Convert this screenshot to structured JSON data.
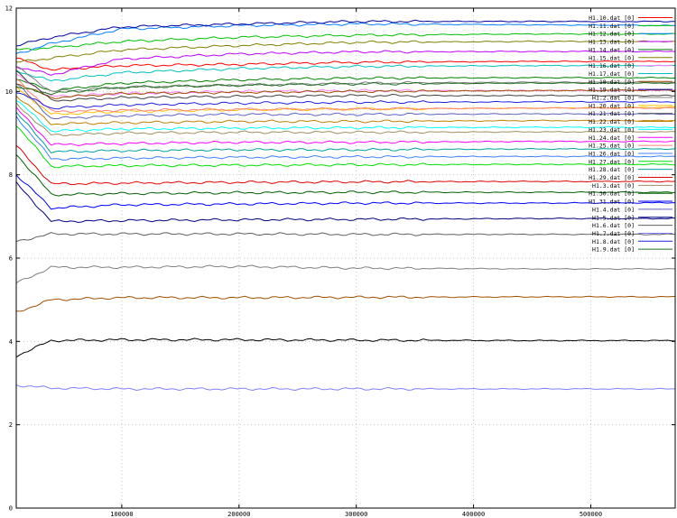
{
  "chart_data": {
    "type": "line",
    "title": "",
    "xlabel": "",
    "ylabel": "",
    "xlim": [
      10000,
      572000
    ],
    "ylim": [
      0,
      12
    ],
    "grid": true,
    "legend_position": "top-right",
    "x_ticks": [
      100000,
      200000,
      300000,
      400000,
      500000
    ],
    "y_ticks": [
      0,
      2,
      4,
      6,
      8,
      10,
      12
    ],
    "x_tick_labels": [
      "100000",
      "200000",
      "300000",
      "400000",
      "500000"
    ],
    "y_tick_labels": [
      "0",
      "2",
      "4",
      "6",
      "8",
      "10",
      "12"
    ],
    "series": [
      {
        "name": "H1.10.dat [0]",
        "color": "#ff0000",
        "start": 10.8,
        "values": [
          10.52,
          10.62,
          10.65,
          10.7,
          10.72,
          10.72
        ]
      },
      {
        "name": "H1.11.dat [0]",
        "color": "#00c000",
        "start": 11.0,
        "values": [
          11.05,
          11.2,
          11.3,
          11.35,
          11.38,
          11.38
        ]
      },
      {
        "name": "H1.12.dat [0]",
        "color": "#0080ff",
        "start": 10.9,
        "values": [
          11.15,
          11.5,
          11.58,
          11.62,
          11.6,
          11.58
        ]
      },
      {
        "name": "H1.13.dat [0]",
        "color": "#c000ff",
        "start": 10.6,
        "values": [
          10.4,
          10.78,
          10.9,
          10.95,
          10.96,
          10.96
        ]
      },
      {
        "name": "H1.14.dat [0]",
        "color": "#008000",
        "start": 10.3,
        "values": [
          10.02,
          10.2,
          10.28,
          10.32,
          10.33,
          10.33
        ]
      },
      {
        "name": "H1.15.dat [0]",
        "color": "#808000",
        "start": 10.7,
        "values": [
          10.8,
          11.0,
          11.1,
          11.18,
          11.2,
          11.2
        ]
      },
      {
        "name": "H1.16.dat [0]",
        "color": "#ff80ff",
        "start": 10.4,
        "values": [
          9.88,
          9.95,
          10.0,
          10.02,
          10.02,
          10.03
        ]
      },
      {
        "name": "H1.17.dat [0]",
        "color": "#00c0c0",
        "start": 10.5,
        "values": [
          10.25,
          10.45,
          10.55,
          10.6,
          10.62,
          10.62
        ]
      },
      {
        "name": "H1.18.dat [0]",
        "color": "#a05000",
        "start": 10.2,
        "values": [
          9.85,
          9.95,
          9.98,
          10.0,
          10.02,
          10.03
        ]
      },
      {
        "name": "H1.19.dat [0]",
        "color": "#0000a0",
        "start": 11.1,
        "values": [
          11.3,
          11.55,
          11.62,
          11.68,
          11.68,
          11.68
        ]
      },
      {
        "name": "H1.2.dat [0]",
        "color": "#808080",
        "start": 10.6,
        "values": [
          10.0,
          10.1,
          10.15,
          10.2,
          10.22,
          10.22
        ]
      },
      {
        "name": "H1.20.dat [0]",
        "color": "#ffc000",
        "start": 10.1,
        "values": [
          9.45,
          9.52,
          9.56,
          9.58,
          9.6,
          9.62
        ]
      },
      {
        "name": "H1.21.dat [0]",
        "color": "#404040",
        "start": 10.5,
        "values": [
          9.78,
          9.85,
          9.88,
          9.9,
          9.9,
          9.9
        ]
      },
      {
        "name": "H1.22.dat [0]",
        "color": "#c08000",
        "start": 9.9,
        "values": [
          9.22,
          9.25,
          9.28,
          9.28,
          9.3,
          9.3
        ]
      },
      {
        "name": "H1.23.dat [0]",
        "color": "#00ffff",
        "start": 9.8,
        "values": [
          9.05,
          9.1,
          9.12,
          9.13,
          9.14,
          9.14
        ]
      },
      {
        "name": "H1.24.dat [0]",
        "color": "#ff00ff",
        "start": 9.6,
        "values": [
          8.72,
          8.75,
          8.78,
          8.78,
          8.8,
          8.8
        ]
      },
      {
        "name": "H1.25.dat [0]",
        "color": "#ff8080",
        "start": 10.3,
        "values": [
          9.52,
          9.55,
          9.57,
          9.58,
          9.6,
          9.6
        ]
      },
      {
        "name": "H1.26.dat [0]",
        "color": "#4080ff",
        "start": 9.4,
        "values": [
          8.38,
          8.4,
          8.42,
          8.43,
          8.44,
          8.44
        ]
      },
      {
        "name": "H1.27.dat [0]",
        "color": "#00e000",
        "start": 9.2,
        "values": [
          8.2,
          8.22,
          8.23,
          8.24,
          8.25,
          8.25
        ]
      },
      {
        "name": "H1.28.dat [0]",
        "color": "#00a0a0",
        "start": 9.5,
        "values": [
          8.55,
          8.58,
          8.6,
          8.6,
          8.62,
          8.62
        ]
      },
      {
        "name": "H1.29.dat [0]",
        "color": "#e00000",
        "start": 8.7,
        "values": [
          7.78,
          7.8,
          7.82,
          7.83,
          7.84,
          7.84
        ]
      },
      {
        "name": "H1.3.dat [0]",
        "color": "#a09060",
        "start": 9.7,
        "values": [
          8.95,
          9.0,
          9.02,
          9.02,
          9.03,
          9.03
        ]
      },
      {
        "name": "H1.30.dat [0]",
        "color": "#006000",
        "start": 8.5,
        "values": [
          7.52,
          7.55,
          7.57,
          7.58,
          7.58,
          7.58
        ]
      },
      {
        "name": "H1.31.dat [0]",
        "color": "#0000ff",
        "start": 8.0,
        "values": [
          7.2,
          7.28,
          7.3,
          7.32,
          7.32,
          7.33
        ]
      },
      {
        "name": "H1.4.dat [0]",
        "color": "#6060c0",
        "start": 10.2,
        "values": [
          9.35,
          9.42,
          9.45,
          9.45,
          9.46,
          9.46
        ]
      },
      {
        "name": "H1.5.dat [0]",
        "color": "#000080",
        "start": 7.8,
        "values": [
          6.88,
          6.9,
          6.92,
          6.93,
          6.95,
          6.95
        ]
      },
      {
        "name": "H1.6.dat [0]",
        "color": "#606060",
        "start": 6.4,
        "values": [
          6.58,
          6.58,
          6.58,
          6.57,
          6.57,
          6.57
        ]
      },
      {
        "name": "H1.7.dat [0]",
        "color": "#8080ff",
        "start": 2.95,
        "values": [
          2.88,
          2.86,
          2.86,
          2.86,
          2.86,
          2.86
        ]
      },
      {
        "name": "H1.8.dat [0]",
        "color": "#2020e0",
        "start": 10.0,
        "values": [
          9.6,
          9.68,
          9.72,
          9.74,
          9.75,
          9.75
        ]
      },
      {
        "name": "H1.9.dat [0]",
        "color": "#207020",
        "start": 10.1,
        "values": [
          9.95,
          10.1,
          10.15,
          10.18,
          10.2,
          10.2
        ]
      },
      {
        "name": "",
        "color": "#808080",
        "start": 5.4,
        "values": [
          5.78,
          5.78,
          5.8,
          5.76,
          5.74,
          5.74
        ]
      },
      {
        "name": "",
        "color": "#a05000",
        "start": 4.7,
        "values": [
          5.0,
          5.05,
          5.05,
          5.06,
          5.07,
          5.07
        ]
      },
      {
        "name": "",
        "color": "#000000",
        "start": 3.65,
        "values": [
          4.02,
          4.04,
          4.04,
          4.03,
          4.02,
          4.02
        ]
      }
    ]
  }
}
